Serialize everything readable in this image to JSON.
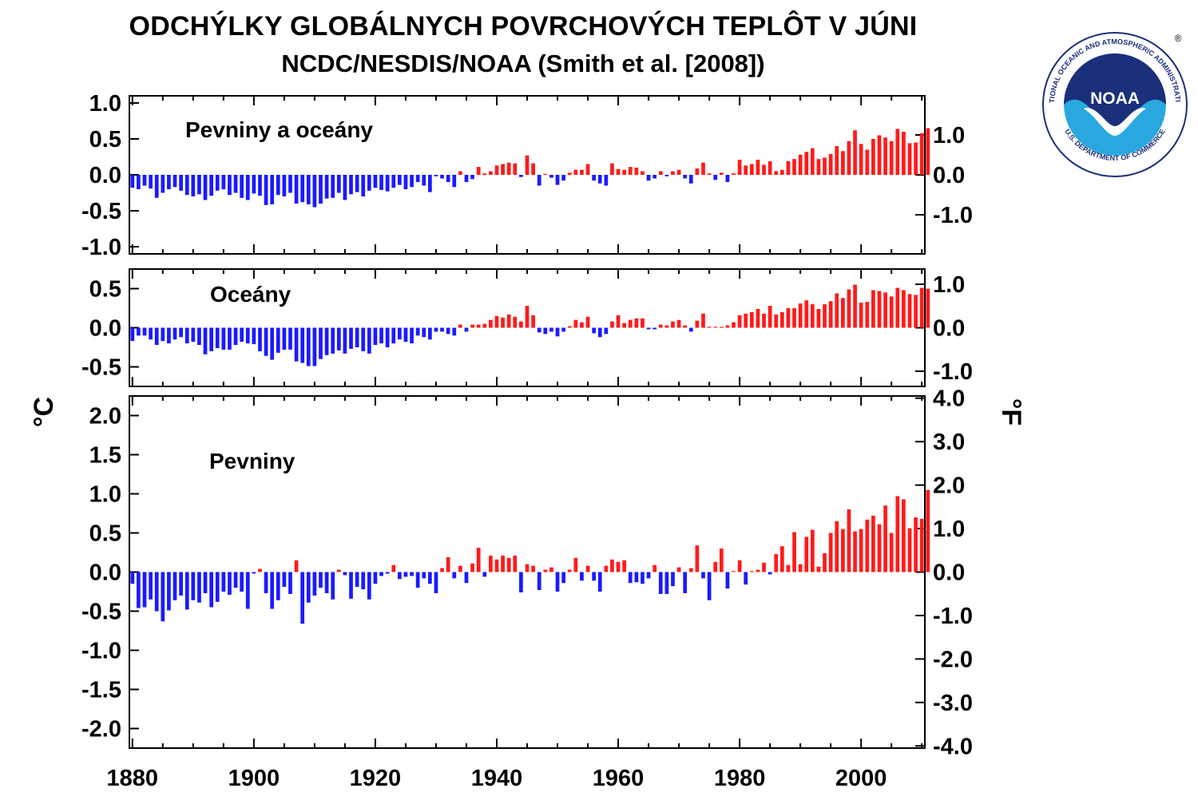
{
  "header": {
    "title": "ODCHÝLKY GLOBÁLNYCH POVRCHOVÝCH TEPLÔT V JÚNI",
    "subtitle": "NCDC/NESDIS/NOAA (Smith et al. [2008])"
  },
  "logo": {
    "center_text": "NOAA",
    "ring_top": "NATIONAL OCEANIC AND ATMOSPHERIC ADMINISTRATION",
    "ring_bottom": "U.S. DEPARTMENT OF COMMERCE",
    "registered": "®",
    "colors": {
      "navy": "#1b2f7a",
      "sky": "#29a8e0",
      "white": "#ffffff"
    }
  },
  "chart_data": {
    "type": "bar",
    "title": "ODCHÝLKY GLOBÁLNYCH POVRCHOVÝCH TEPLÔT V JÚNI",
    "subtitle": "NCDC/NESDIS/NOAA (Smith et al. [2008])",
    "xlabel": "",
    "ylabel_left": "°C",
    "ylabel_right": "°F",
    "x_start": 1880,
    "x_end": 2010,
    "x_ticks": [
      "1880",
      "1900",
      "1920",
      "1940",
      "1960",
      "1980",
      "2000"
    ],
    "colors": {
      "positive": "#ff1a1a",
      "negative": "#1a1aff"
    },
    "panels": [
      {
        "name": "Pevniny a oceány",
        "ylim": [
          -1.1,
          1.1
        ],
        "yticks_c": [
          "1.0",
          "0.5",
          "0.0",
          "-0.5",
          "-1.0"
        ],
        "yticks_f": [
          "1.0",
          "0.0",
          "-1.0"
        ],
        "values": [
          -0.18,
          -0.2,
          -0.15,
          -0.19,
          -0.32,
          -0.25,
          -0.2,
          -0.17,
          -0.22,
          -0.28,
          -0.3,
          -0.27,
          -0.35,
          -0.29,
          -0.22,
          -0.2,
          -0.28,
          -0.25,
          -0.32,
          -0.35,
          -0.26,
          -0.29,
          -0.42,
          -0.41,
          -0.28,
          -0.3,
          -0.25,
          -0.4,
          -0.38,
          -0.41,
          -0.45,
          -0.4,
          -0.33,
          -0.32,
          -0.25,
          -0.35,
          -0.27,
          -0.24,
          -0.3,
          -0.22,
          -0.18,
          -0.21,
          -0.23,
          -0.18,
          -0.14,
          -0.2,
          -0.17,
          -0.1,
          -0.15,
          -0.24,
          -0.02,
          -0.05,
          -0.1,
          -0.17,
          0.05,
          -0.1,
          -0.06,
          0.11,
          0.02,
          0.05,
          0.13,
          0.15,
          0.17,
          0.16,
          -0.03,
          0.27,
          0.16,
          -0.15,
          0.0,
          -0.04,
          -0.14,
          -0.08,
          0.03,
          0.07,
          0.07,
          0.15,
          -0.08,
          -0.12,
          -0.15,
          0.16,
          0.08,
          0.07,
          0.11,
          0.1,
          0.05,
          -0.08,
          -0.05,
          0.05,
          -0.02,
          0.05,
          0.07,
          -0.05,
          -0.12,
          0.09,
          0.17,
          0.02,
          -0.07,
          0.03,
          -0.1,
          0.02,
          0.21,
          0.13,
          0.15,
          0.21,
          0.14,
          0.19,
          0.05,
          0.07,
          0.19,
          0.22,
          0.28,
          0.32,
          0.37,
          0.22,
          0.24,
          0.29,
          0.4,
          0.33,
          0.47,
          0.62,
          0.43,
          0.35,
          0.5,
          0.55,
          0.52,
          0.47,
          0.64,
          0.6,
          0.44,
          0.45,
          0.58,
          0.65
        ]
      },
      {
        "name": "Oceány",
        "ylim": [
          -0.75,
          0.75
        ],
        "yticks_c": [
          "0.5",
          "0.0",
          "-0.5"
        ],
        "yticks_f": [
          "1.0",
          "0.0",
          "-1.0"
        ],
        "values": [
          -0.17,
          -0.1,
          -0.1,
          -0.15,
          -0.22,
          -0.17,
          -0.2,
          -0.15,
          -0.12,
          -0.2,
          -0.18,
          -0.22,
          -0.34,
          -0.3,
          -0.26,
          -0.28,
          -0.28,
          -0.22,
          -0.18,
          -0.2,
          -0.21,
          -0.3,
          -0.36,
          -0.41,
          -0.32,
          -0.28,
          -0.28,
          -0.43,
          -0.45,
          -0.49,
          -0.49,
          -0.4,
          -0.35,
          -0.33,
          -0.29,
          -0.33,
          -0.27,
          -0.25,
          -0.3,
          -0.33,
          -0.22,
          -0.2,
          -0.25,
          -0.2,
          -0.15,
          -0.18,
          -0.2,
          -0.1,
          -0.12,
          -0.15,
          -0.05,
          -0.05,
          -0.08,
          -0.1,
          0.04,
          -0.05,
          0.04,
          0.04,
          0.05,
          0.1,
          0.15,
          0.13,
          0.17,
          0.14,
          0.08,
          0.28,
          0.16,
          -0.06,
          -0.08,
          -0.05,
          -0.11,
          -0.05,
          0.02,
          0.1,
          0.07,
          0.14,
          -0.07,
          -0.12,
          -0.08,
          0.08,
          0.16,
          0.06,
          0.1,
          0.12,
          0.12,
          -0.02,
          -0.02,
          0.04,
          0.03,
          0.08,
          0.1,
          0.03,
          -0.05,
          0.09,
          0.18,
          0.01,
          0.0,
          0.01,
          0.03,
          0.07,
          0.16,
          0.18,
          0.2,
          0.24,
          0.18,
          0.28,
          0.17,
          0.2,
          0.25,
          0.25,
          0.31,
          0.35,
          0.3,
          0.24,
          0.3,
          0.34,
          0.44,
          0.38,
          0.49,
          0.55,
          0.32,
          0.33,
          0.48,
          0.47,
          0.45,
          0.4,
          0.51,
          0.48,
          0.43,
          0.42,
          0.51,
          0.5
        ]
      },
      {
        "name": "Pevniny",
        "ylim": [
          -2.25,
          2.25
        ],
        "yticks_c": [
          "2.0",
          "1.5",
          "1.0",
          "0.5",
          "0.0",
          "-0.5",
          "-1.0",
          "-1.5",
          "-2.0"
        ],
        "yticks_f": [
          "4.0",
          "3.0",
          "2.0",
          "1.0",
          "0.0",
          "-1.0",
          "-2.0",
          "-3.0",
          "-4.0"
        ],
        "values": [
          -0.15,
          -0.46,
          -0.45,
          -0.35,
          -0.5,
          -0.63,
          -0.49,
          -0.36,
          -0.3,
          -0.48,
          -0.36,
          -0.39,
          -0.27,
          -0.45,
          -0.38,
          -0.25,
          -0.29,
          -0.2,
          -0.25,
          -0.47,
          -0.02,
          0.04,
          -0.27,
          -0.47,
          -0.36,
          -0.19,
          -0.28,
          0.15,
          -0.66,
          -0.39,
          -0.3,
          -0.2,
          -0.27,
          -0.35,
          0.03,
          -0.04,
          -0.34,
          -0.19,
          -0.22,
          -0.35,
          -0.15,
          -0.05,
          -0.02,
          0.09,
          -0.09,
          -0.06,
          -0.05,
          -0.2,
          -0.08,
          -0.15,
          -0.27,
          0.05,
          0.19,
          -0.08,
          0.08,
          -0.14,
          0.11,
          0.31,
          -0.06,
          0.21,
          0.16,
          0.21,
          0.18,
          0.21,
          -0.26,
          0.1,
          0.08,
          -0.23,
          0.03,
          0.06,
          -0.25,
          -0.14,
          0.03,
          0.18,
          -0.11,
          0.08,
          -0.11,
          -0.25,
          0.08,
          0.16,
          0.13,
          0.15,
          -0.14,
          -0.13,
          -0.15,
          -0.08,
          0.09,
          -0.28,
          -0.28,
          -0.18,
          0.06,
          -0.27,
          0.05,
          0.34,
          -0.08,
          -0.36,
          0.13,
          0.3,
          -0.21,
          0.01,
          0.15,
          -0.16,
          0.0,
          0.03,
          0.12,
          -0.03,
          0.23,
          0.33,
          0.09,
          0.51,
          0.1,
          0.45,
          0.54,
          0.07,
          0.24,
          0.5,
          0.65,
          0.55,
          0.8,
          0.52,
          0.55,
          0.67,
          0.72,
          0.61,
          0.85,
          0.5,
          0.97,
          0.93,
          0.56,
          0.7,
          0.68,
          1.05
        ]
      }
    ],
    "annotations": [
      "Pevniny a oceány",
      "Oceány",
      "Pevniny"
    ]
  }
}
